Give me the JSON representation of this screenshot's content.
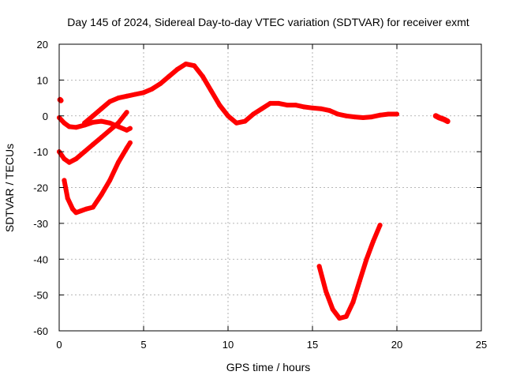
{
  "chart_data": {
    "type": "line",
    "title": "Day 145 of 2024, Sidereal Day-to-day VTEC variation (SDTVAR) for receiver exmt",
    "xlabel": "GPS time / hours",
    "ylabel": "SDTVAR / TECUs",
    "xlim": [
      0,
      25
    ],
    "ylim": [
      -60,
      20
    ],
    "xticks": [
      0,
      5,
      10,
      15,
      20,
      25
    ],
    "yticks": [
      -60,
      -50,
      -40,
      -30,
      -20,
      -10,
      0,
      10,
      20
    ],
    "grid": true,
    "color": "#ff0000",
    "series": [
      {
        "name": "track-a",
        "x": [
          0.0,
          0.3,
          0.6,
          1.0,
          1.5,
          2.0,
          2.5,
          3.0,
          3.5,
          4.0,
          4.2
        ],
        "y": [
          -0.5,
          -2.0,
          -3.0,
          -3.2,
          -2.6,
          -1.8,
          -1.5,
          -2.0,
          -3.0,
          -4.0,
          -3.5
        ]
      },
      {
        "name": "track-b",
        "x": [
          0.0,
          0.3,
          0.6,
          1.0,
          1.5,
          2.0,
          2.5,
          3.0,
          3.5,
          4.0
        ],
        "y": [
          -10.0,
          -12.0,
          -13.0,
          -12.0,
          -10.0,
          -8.0,
          -6.0,
          -4.0,
          -2.0,
          1.0
        ]
      },
      {
        "name": "track-c",
        "x": [
          0.3,
          0.5,
          0.8,
          1.0,
          1.3,
          1.6,
          2.0,
          2.5,
          3.0,
          3.5,
          4.0,
          4.2
        ],
        "y": [
          -18.0,
          -23.0,
          -26.0,
          -27.0,
          -26.5,
          -26.0,
          -25.5,
          -22.0,
          -18.0,
          -13.0,
          -9.0,
          -7.5
        ]
      },
      {
        "name": "track-d",
        "x": [
          1.5,
          2.0,
          2.5,
          3.0,
          3.5,
          4.0,
          4.5,
          5.0,
          5.5,
          6.0,
          6.5,
          7.0,
          7.5,
          8.0,
          8.5,
          9.0,
          9.5,
          10.0,
          10.5,
          11.0,
          11.5,
          12.0,
          12.5,
          13.0,
          13.5,
          14.0,
          14.5,
          15.0,
          15.5,
          16.0,
          16.5,
          17.0,
          17.5,
          18.0,
          18.5,
          19.0,
          19.5,
          20.0
        ],
        "y": [
          -2.0,
          0.0,
          2.0,
          4.0,
          5.0,
          5.5,
          6.0,
          6.5,
          7.5,
          9.0,
          11.0,
          13.0,
          14.5,
          14.0,
          11.0,
          7.0,
          3.0,
          0.0,
          -2.0,
          -1.5,
          0.5,
          2.0,
          3.5,
          3.5,
          3.0,
          3.0,
          2.5,
          2.2,
          2.0,
          1.5,
          0.5,
          0.0,
          -0.3,
          -0.5,
          -0.3,
          0.2,
          0.5,
          0.5
        ]
      },
      {
        "name": "track-e",
        "x": [
          15.4,
          15.8,
          16.2,
          16.6,
          17.0,
          17.4,
          17.8,
          18.2,
          18.6,
          19.0
        ],
        "y": [
          -42.0,
          -49.0,
          -54.0,
          -56.5,
          -56.0,
          -52.0,
          -46.0,
          -40.0,
          -35.0,
          -30.5
        ]
      },
      {
        "name": "track-f",
        "x": [
          22.3,
          22.5,
          22.8,
          23.0
        ],
        "y": [
          0.0,
          -0.5,
          -1.0,
          -1.5
        ]
      },
      {
        "name": "track-g",
        "x": [
          0.05,
          0.1
        ],
        "y": [
          4.5,
          4.3
        ]
      }
    ]
  }
}
